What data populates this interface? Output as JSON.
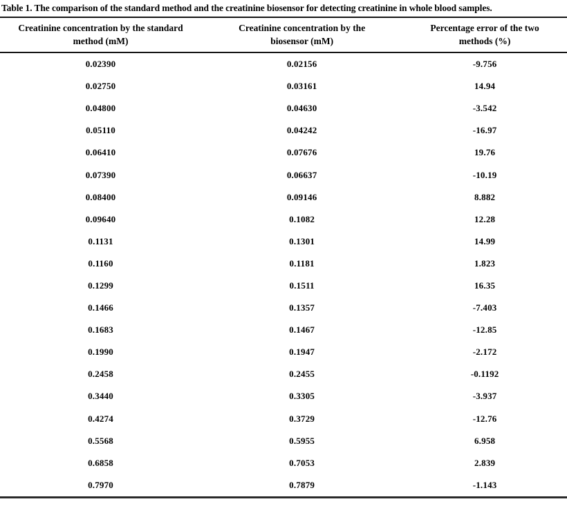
{
  "table": {
    "caption": "Table 1. The comparison of the standard method and the creatinine biosensor for detecting creatinine in whole blood samples.",
    "headers": [
      "Creatinine concentration by the standard method (mM)",
      "Creatinine concentration by the biosensor (mM)",
      "Percentage error of the two methods (%)"
    ],
    "rows": [
      [
        "0.02390",
        "0.02156",
        "-9.756"
      ],
      [
        "0.02750",
        "0.03161",
        "14.94"
      ],
      [
        "0.04800",
        "0.04630",
        "-3.542"
      ],
      [
        "0.05110",
        "0.04242",
        "-16.97"
      ],
      [
        "0.06410",
        "0.07676",
        "19.76"
      ],
      [
        "0.07390",
        "0.06637",
        "-10.19"
      ],
      [
        "0.08400",
        "0.09146",
        "8.882"
      ],
      [
        "0.09640",
        "0.1082",
        "12.28"
      ],
      [
        "0.1131",
        "0.1301",
        "14.99"
      ],
      [
        "0.1160",
        "0.1181",
        "1.823"
      ],
      [
        "0.1299",
        "0.1511",
        "16.35"
      ],
      [
        "0.1466",
        "0.1357",
        "-7.403"
      ],
      [
        "0.1683",
        "0.1467",
        "-12.85"
      ],
      [
        "0.1990",
        "0.1947",
        "-2.172"
      ],
      [
        "0.2458",
        "0.2455",
        "-0.1192"
      ],
      [
        "0.3440",
        "0.3305",
        "-3.937"
      ],
      [
        "0.4274",
        "0.3729",
        "-12.76"
      ],
      [
        "0.5568",
        "0.5955",
        "6.958"
      ],
      [
        "0.6858",
        "0.7053",
        "2.839"
      ],
      [
        "0.7970",
        "0.7879",
        "-1.143"
      ]
    ],
    "text_color": "#000000",
    "background_color": "#ffffff"
  }
}
